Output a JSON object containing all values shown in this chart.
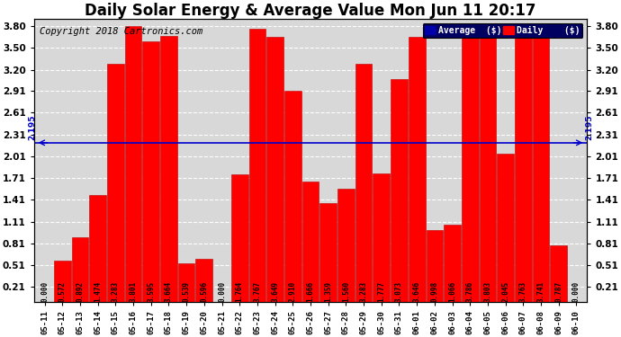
{
  "title": "Daily Solar Energy & Average Value Mon Jun 11 20:17",
  "copyright": "Copyright 2018 Cartronics.com",
  "categories": [
    "05-11",
    "05-12",
    "05-13",
    "05-14",
    "05-15",
    "05-16",
    "05-17",
    "05-18",
    "05-19",
    "05-20",
    "05-21",
    "05-22",
    "05-23",
    "05-24",
    "05-25",
    "05-26",
    "05-27",
    "05-28",
    "05-29",
    "05-30",
    "05-31",
    "06-01",
    "06-02",
    "06-03",
    "06-04",
    "06-05",
    "06-06",
    "06-07",
    "06-08",
    "06-09",
    "06-10"
  ],
  "values": [
    0.0,
    0.572,
    0.892,
    1.474,
    3.283,
    3.801,
    3.595,
    3.664,
    0.539,
    0.596,
    0.0,
    1.764,
    3.767,
    3.649,
    2.91,
    1.666,
    1.359,
    1.56,
    3.283,
    1.777,
    3.073,
    3.646,
    0.998,
    1.066,
    3.786,
    3.803,
    2.045,
    3.763,
    3.741,
    0.787,
    0.0
  ],
  "average": 2.195,
  "bar_color": "#ff0000",
  "bar_edge_color": "#bb0000",
  "avg_line_color": "#0000cc",
  "ylim_min": 0.0,
  "ylim_max": 3.9,
  "yticks": [
    0.21,
    0.51,
    0.81,
    1.11,
    1.41,
    1.71,
    2.01,
    2.31,
    2.61,
    2.91,
    3.2,
    3.5,
    3.8
  ],
  "background_color": "#ffffff",
  "plot_bg_color": "#d8d8d8",
  "grid_color": "#ffffff",
  "title_fontsize": 12,
  "copyright_fontsize": 7.5,
  "avg_label": "2.195",
  "legend_avg_bg": "#0000aa",
  "legend_daily_bg": "#ff0000",
  "value_label_fontsize": 5.5,
  "tick_fontsize": 7.5,
  "xtick_fontsize": 6.5
}
